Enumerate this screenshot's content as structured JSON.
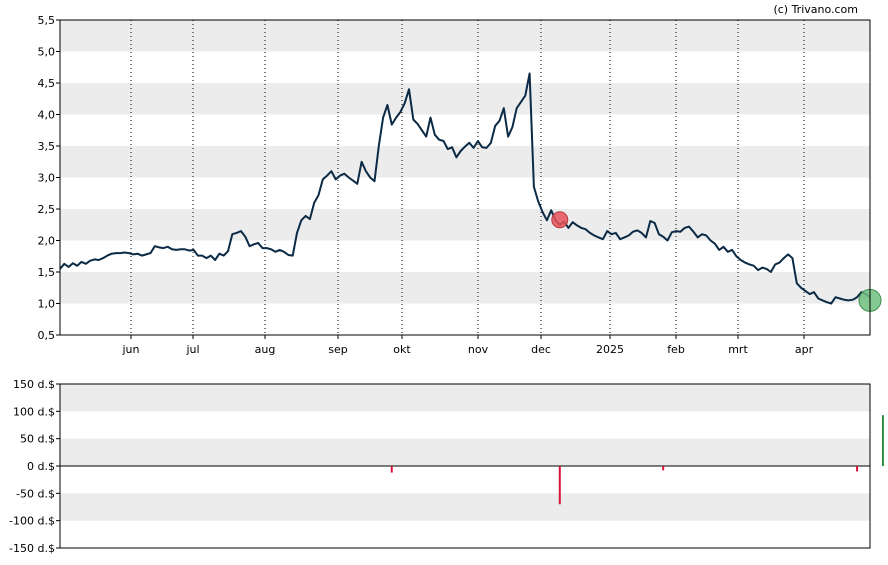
{
  "copyright": "(c) Trivano.com",
  "colors": {
    "band": "#ececec",
    "line": "#0b2a45",
    "sell_marker": "#e9525b",
    "buy_marker": "#6fbf7f",
    "positive_bar": "#2e8b3e",
    "negative_bar": "#d9123a"
  },
  "chart_data": [
    {
      "type": "line",
      "ylim": [
        0.5,
        5.5
      ],
      "y_ticks": [
        "0,5",
        "1,0",
        "1,5",
        "2,0",
        "2,5",
        "3,0",
        "3,5",
        "4,0",
        "4,5",
        "5,0",
        "5,5"
      ],
      "x_tick_labels": [
        "jun",
        "jul",
        "aug",
        "sep",
        "okt",
        "nov",
        "dec",
        "2025",
        "feb",
        "mrt",
        "apr"
      ],
      "grid": "horizontal bands, dotted vertical lines at month starts",
      "series": [
        {
          "values": [
            1.55,
            1.63,
            1.58,
            1.64,
            1.6,
            1.66,
            1.63,
            1.68,
            1.7,
            1.69,
            1.72,
            1.76,
            1.79,
            1.8,
            1.8,
            1.81,
            1.8,
            1.78,
            1.79,
            1.76,
            1.78,
            1.8,
            1.91,
            1.89,
            1.88,
            1.9,
            1.86,
            1.85,
            1.86,
            1.86,
            1.84,
            1.85,
            1.76,
            1.76,
            1.72,
            1.76,
            1.69,
            1.79,
            1.76,
            1.83,
            2.1,
            2.12,
            2.15,
            2.06,
            1.91,
            1.94,
            1.96,
            1.88,
            1.88,
            1.86,
            1.82,
            1.85,
            1.82,
            1.77,
            1.76,
            2.12,
            2.32,
            2.39,
            2.34,
            2.6,
            2.72,
            2.97,
            3.03,
            3.1,
            2.97,
            3.03,
            3.06,
            3.0,
            2.95,
            2.9,
            3.25,
            3.1,
            3.0,
            2.94,
            3.5,
            3.95,
            4.15,
            3.84,
            3.95,
            4.04,
            4.18,
            4.4,
            3.92,
            3.85,
            3.75,
            3.65,
            3.95,
            3.68,
            3.6,
            3.58,
            3.45,
            3.48,
            3.32,
            3.42,
            3.49,
            3.55,
            3.47,
            3.58,
            3.48,
            3.47,
            3.55,
            3.82,
            3.9,
            4.1,
            3.65,
            3.8,
            4.1,
            4.2,
            4.3,
            4.65,
            2.85,
            2.62,
            2.45,
            2.32,
            2.48,
            2.32,
            2.25,
            2.3,
            2.2,
            2.29,
            2.24,
            2.2,
            2.18,
            2.12,
            2.08,
            2.05,
            2.02,
            2.15,
            2.1,
            2.12,
            2.02,
            2.05,
            2.08,
            2.14,
            2.16,
            2.12,
            2.05,
            2.31,
            2.28,
            2.1,
            2.06,
            2.0,
            2.13,
            2.15,
            2.14,
            2.2,
            2.22,
            2.14,
            2.05,
            2.1,
            2.08,
            2.0,
            1.95,
            1.85,
            1.9,
            1.82,
            1.85,
            1.75,
            1.69,
            1.65,
            1.62,
            1.6,
            1.53,
            1.57,
            1.55,
            1.5,
            1.62,
            1.65,
            1.72,
            1.78,
            1.72,
            1.32,
            1.25,
            1.2,
            1.15,
            1.18,
            1.08,
            1.05,
            1.02,
            1.0,
            1.1,
            1.08,
            1.06,
            1.05,
            1.06,
            1.1,
            1.18,
            1.15,
            1.1
          ]
        }
      ],
      "markers": [
        {
          "type": "sell",
          "index": 116,
          "value": 2.33
        },
        {
          "type": "buy",
          "index": 188,
          "value": 1.05
        }
      ]
    },
    {
      "type": "bar",
      "ylim": [
        -150,
        150
      ],
      "y_ticks": [
        "150 d.$",
        "100 d.$",
        "50 d.$",
        "0 d.$",
        "-50 d.$",
        "-100 d.$",
        "-150 d.$"
      ],
      "bars": [
        {
          "index": 77,
          "value": -12
        },
        {
          "index": 116,
          "value": -70
        },
        {
          "index": 140,
          "value": -8
        },
        {
          "index": 185,
          "value": -10
        },
        {
          "index": 191,
          "value": 93
        }
      ]
    }
  ]
}
